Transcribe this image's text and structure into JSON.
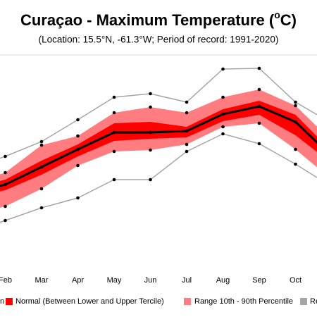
{
  "chart_data": {
    "type": "climate-band",
    "title": "Curaçao - Maximum Temperature (",
    "title_superscript": "o",
    "title_end": "C)",
    "subtitle": "(Location: 15.5°N, -61.3°W; Period of record: 1991-2020)",
    "categories": [
      null,
      "Feb",
      "Mar",
      "Apr",
      "May",
      "Jun",
      "Jul",
      "Aug",
      "Sep",
      "Oct",
      null
    ],
    "ylim": [
      28,
      34
    ],
    "series": [
      {
        "name": "n",
        "color": "#000000",
        "values": [
          30.1,
          30.36,
          30.86,
          31.36,
          31.84,
          31.84,
          31.88,
          32.36,
          32.58,
          32.14,
          31.16
        ]
      },
      {
        "name": "Normal (Between Lower and Upper Tercile)",
        "color": "#ff0000",
        "upper": [
          30.24,
          30.5,
          31.04,
          31.5,
          32.1,
          32.14,
          32.0,
          32.5,
          32.74,
          32.34,
          31.3
        ],
        "lower": [
          29.96,
          30.2,
          30.64,
          31.16,
          31.6,
          31.66,
          31.7,
          32.16,
          32.34,
          31.76,
          30.96
        ]
      },
      {
        "name": "Range 10th - 90th Percentile",
        "color": "#ff7c80",
        "upper": [
          30.36,
          30.7,
          31.48,
          31.74,
          32.4,
          32.56,
          32.4,
          32.84,
          33.06,
          32.6,
          31.6
        ],
        "lower": [
          29.5,
          29.74,
          30.24,
          30.9,
          31.3,
          31.34,
          31.5,
          32.0,
          32.1,
          31.36,
          30.5
        ]
      },
      {
        "name": "Re",
        "color": "#a6a6a6",
        "upper": [
          30.8,
          31.16,
          31.58,
          32.2,
          32.84,
          32.94,
          32.7,
          33.64,
          33.66,
          32.7,
          32.1
        ],
        "lower": [
          29.0,
          29.34,
          29.7,
          29.98,
          30.5,
          30.5,
          31.3,
          31.8,
          31.52,
          30.94,
          30.3
        ]
      }
    ]
  }
}
